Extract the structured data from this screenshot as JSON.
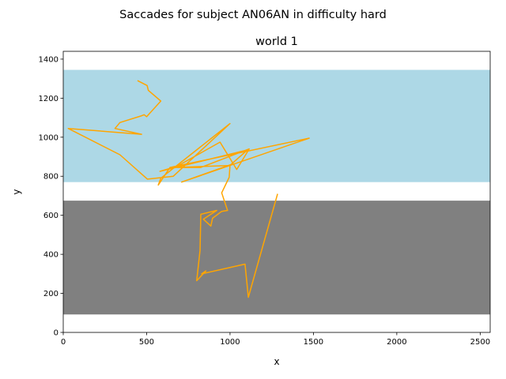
{
  "figure": {
    "suptitle": "Saccades for subject AN06AN in difficulty hard"
  },
  "chart_data": {
    "type": "line",
    "title": "world 1",
    "xlabel": "x",
    "ylabel": "y",
    "xlim": [
      0,
      2560
    ],
    "ylim": [
      0,
      1440
    ],
    "xticks": [
      0,
      500,
      1000,
      1500,
      2000,
      2500
    ],
    "yticks": [
      0,
      200,
      400,
      600,
      800,
      1000,
      1200,
      1400
    ],
    "grid": false,
    "regions": [
      {
        "color": "#add8e6",
        "x": [
          0,
          2560
        ],
        "y": [
          770,
          1345
        ]
      },
      {
        "color": "#808080",
        "x": [
          0,
          2560
        ],
        "y": [
          92,
          675
        ]
      }
    ],
    "series": [
      {
        "color": "#ffa500",
        "x": [
          445,
          503,
          510,
          585,
          500,
          485,
          470,
          340,
          310,
          470,
          30,
          340,
          505,
          660,
          1000,
          585,
          570,
          640,
          1475,
          710,
          1005,
          1105,
          580,
          680,
          940,
          1040,
          1115,
          825,
          660,
          1000,
          995,
          950,
          985,
          950,
          895,
          885,
          840,
          920,
          825,
          820,
          800,
          855,
          830,
          1090,
          1110,
          1285
        ],
        "y": [
          1290,
          1265,
          1240,
          1185,
          1105,
          1115,
          1110,
          1075,
          1045,
          1015,
          1045,
          910,
          785,
          800,
          1070,
          790,
          755,
          845,
          995,
          770,
          860,
          935,
          825,
          850,
          975,
          835,
          940,
          845,
          845,
          855,
          795,
          715,
          625,
          620,
          585,
          545,
          580,
          625,
          605,
          420,
          265,
          315,
          300,
          350,
          180,
          710
        ]
      }
    ]
  }
}
